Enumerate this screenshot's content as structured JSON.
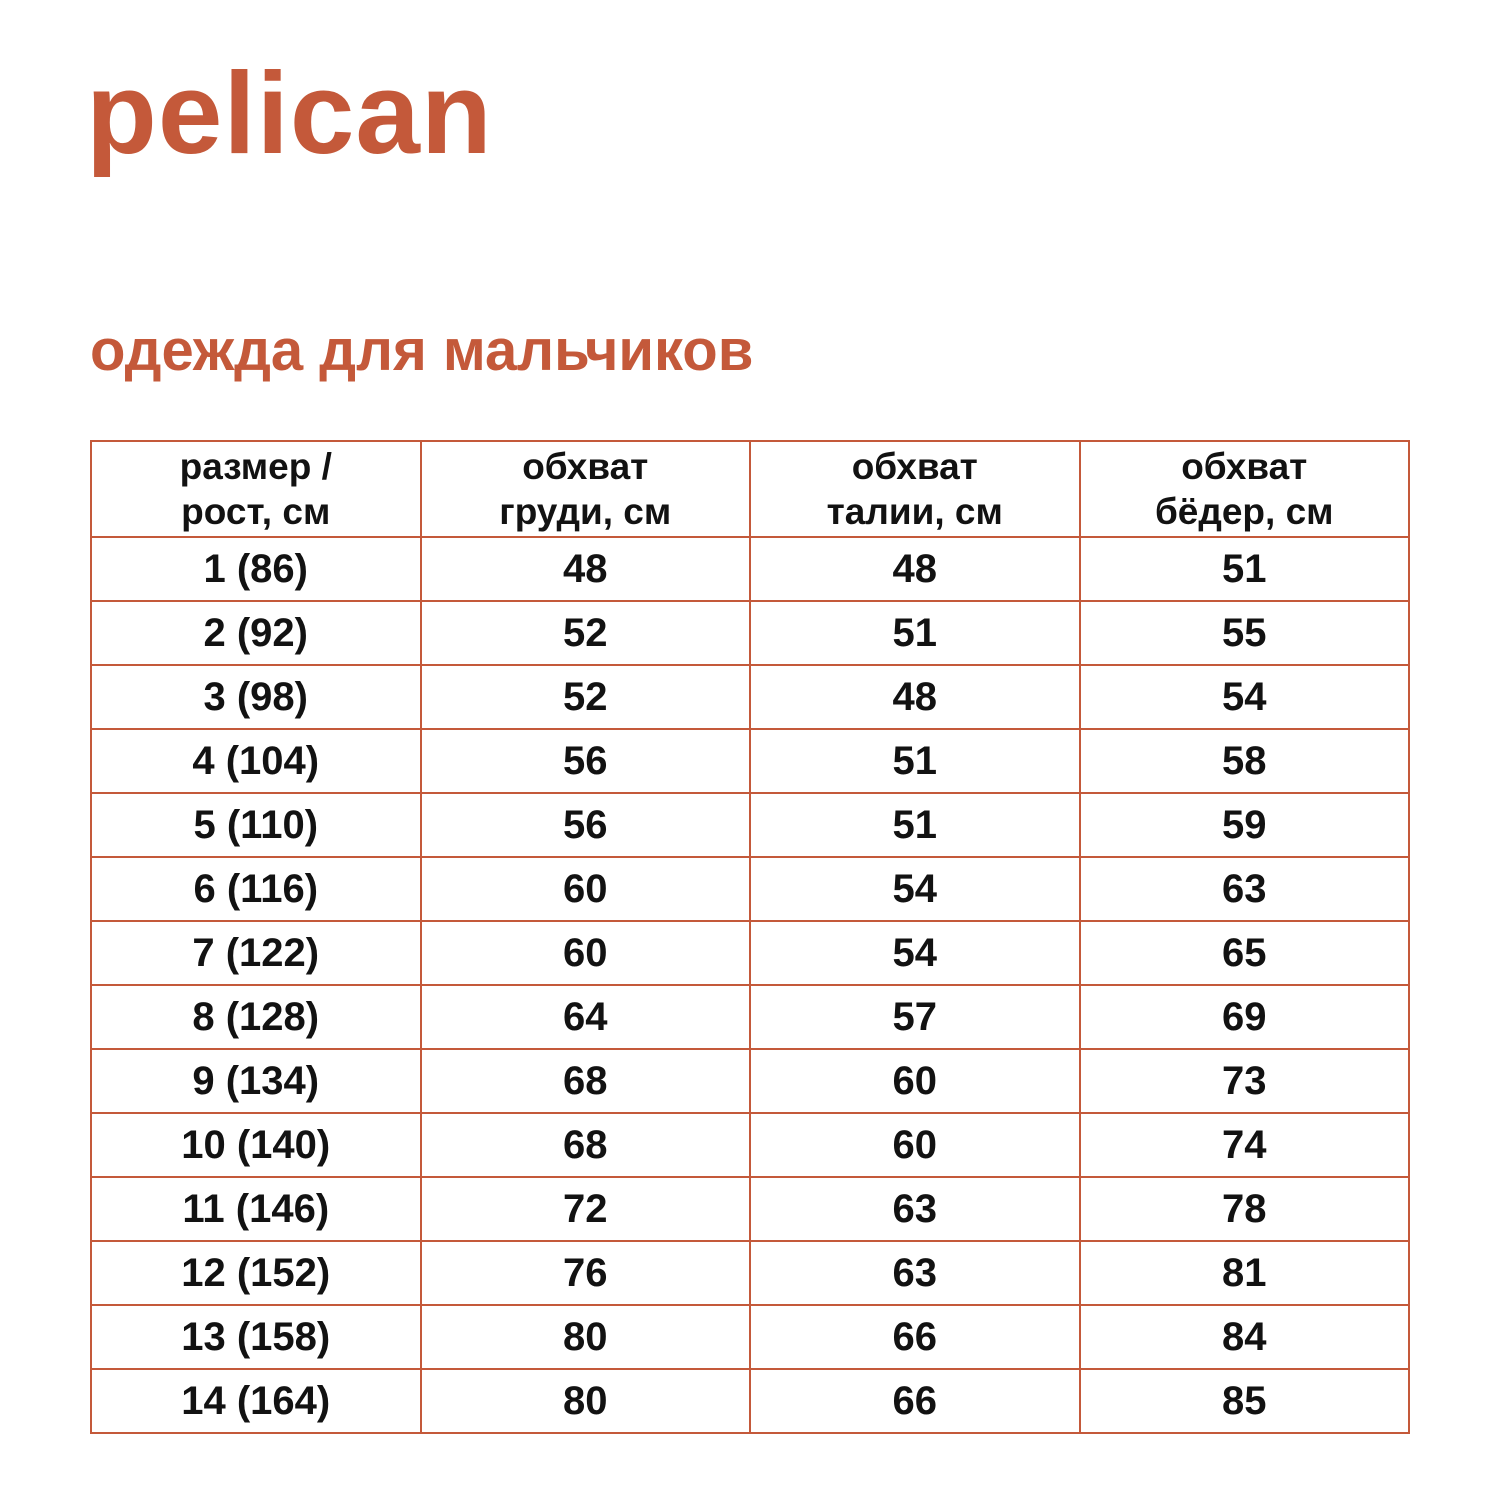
{
  "brand": {
    "logo_text": "pelican"
  },
  "heading": {
    "title": "одежда для мальчиков"
  },
  "colors": {
    "accent": "#C4593A",
    "text": "#121212",
    "background": "#FFFFFF"
  },
  "table": {
    "columns": [
      {
        "key": "size",
        "label": "размер /\nрост, см"
      },
      {
        "key": "chest",
        "label": "обхват\nгруди, см"
      },
      {
        "key": "waist",
        "label": "обхват\nталии, см"
      },
      {
        "key": "hips",
        "label": "обхват\nбёдер, см"
      }
    ],
    "rows": [
      {
        "size": "1 (86)",
        "chest": "48",
        "waist": "48",
        "hips": "51"
      },
      {
        "size": "2 (92)",
        "chest": "52",
        "waist": "51",
        "hips": "55"
      },
      {
        "size": "3 (98)",
        "chest": "52",
        "waist": "48",
        "hips": "54"
      },
      {
        "size": "4 (104)",
        "chest": "56",
        "waist": "51",
        "hips": "58"
      },
      {
        "size": "5 (110)",
        "chest": "56",
        "waist": "51",
        "hips": "59"
      },
      {
        "size": "6 (116)",
        "chest": "60",
        "waist": "54",
        "hips": "63"
      },
      {
        "size": "7 (122)",
        "chest": "60",
        "waist": "54",
        "hips": "65"
      },
      {
        "size": "8 (128)",
        "chest": "64",
        "waist": "57",
        "hips": "69"
      },
      {
        "size": "9 (134)",
        "chest": "68",
        "waist": "60",
        "hips": "73"
      },
      {
        "size": "10 (140)",
        "chest": "68",
        "waist": "60",
        "hips": "74"
      },
      {
        "size": "11 (146)",
        "chest": "72",
        "waist": "63",
        "hips": "78"
      },
      {
        "size": "12 (152)",
        "chest": "76",
        "waist": "63",
        "hips": "81"
      },
      {
        "size": "13 (158)",
        "chest": "80",
        "waist": "66",
        "hips": "84"
      },
      {
        "size": "14 (164)",
        "chest": "80",
        "waist": "66",
        "hips": "85"
      }
    ]
  }
}
